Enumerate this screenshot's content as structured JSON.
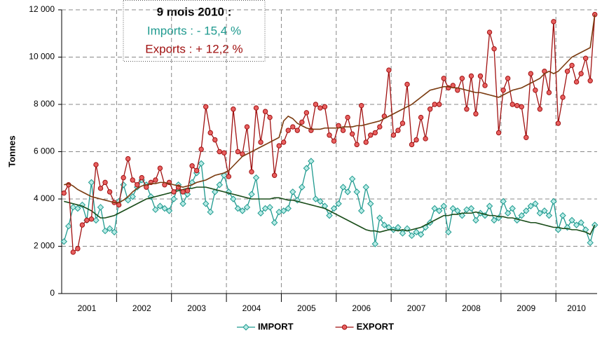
{
  "chart_data": {
    "type": "line",
    "title": "9 mois 2010 :",
    "annotations": [
      "Imports : - 15,4 %",
      "Exports : + 12,2 %"
    ],
    "ylabel": "Tonnes",
    "categories": [
      null,
      null,
      null,
      null,
      null,
      "2001",
      null,
      null,
      null,
      null,
      null,
      null,
      null,
      null,
      null,
      null,
      null,
      "2002",
      null,
      null,
      null,
      null,
      null,
      null,
      null,
      null,
      null,
      null,
      null,
      "2003",
      null,
      null,
      null,
      null,
      null,
      null,
      null,
      null,
      null,
      null,
      null,
      "2004",
      null,
      null,
      null,
      null,
      null,
      null,
      null,
      null,
      null,
      null,
      null,
      "2005",
      null,
      null,
      null,
      null,
      null,
      null,
      null,
      null,
      null,
      null,
      null,
      "2006",
      null,
      null,
      null,
      null,
      null,
      null,
      null,
      null,
      null,
      null,
      null,
      "2007",
      null,
      null,
      null,
      null,
      null,
      null,
      null,
      null,
      null,
      null,
      null,
      "2008",
      null,
      null,
      null,
      null,
      null,
      null,
      null,
      null,
      null,
      null,
      null,
      "2009",
      null,
      null,
      null,
      null,
      null,
      null,
      null,
      null,
      null,
      null,
      "2010",
      null,
      null,
      null,
      null
    ],
    "ylim": [
      0,
      12000
    ],
    "yticks": [
      0,
      {
        "value": 2000,
        "label": "2 000"
      },
      {
        "value": 4000,
        "label": "4 000"
      },
      {
        "value": 6000,
        "label": "6 000"
      },
      {
        "value": 8000,
        "label": "8 000"
      },
      {
        "value": 10000,
        "label": "10 000"
      },
      {
        "value": 12000,
        "label": "12 000"
      }
    ],
    "grid": true,
    "xgrid_every": 12,
    "legend": "bottom",
    "series": [
      {
        "name": "IMPORT",
        "color": "#1f9a8f",
        "marker": "diamond",
        "values": [
          2200,
          2850,
          3650,
          3600,
          3750,
          3100,
          4700,
          3100,
          3650,
          2650,
          2750,
          2600,
          3900,
          4600,
          3950,
          4100,
          4500,
          4800,
          4600,
          4100,
          3550,
          3700,
          3600,
          3500,
          4000,
          4600,
          3800,
          4200,
          4700,
          5100,
          5500,
          3800,
          3450,
          4300,
          4600,
          5000,
          4300,
          4000,
          3600,
          3500,
          3650,
          4200,
          4900,
          3400,
          3600,
          3650,
          3000,
          3450,
          3500,
          3600,
          4300,
          3950,
          4500,
          5300,
          5600,
          4000,
          3900,
          3700,
          3300,
          3600,
          3800,
          4500,
          4300,
          4850,
          4300,
          3500,
          4500,
          3800,
          2100,
          3200,
          2900,
          2800,
          2700,
          2800,
          2550,
          2750,
          2450,
          2600,
          2500,
          2800,
          3000,
          3600,
          3500,
          3700,
          2600,
          3600,
          3500,
          3300,
          3550,
          3600,
          3100,
          3400,
          3300,
          3700,
          3100,
          3200,
          3900,
          3400,
          3600,
          3100,
          3300,
          3500,
          3700,
          3800,
          3400,
          3500,
          3300,
          3900,
          2700,
          3300,
          2800,
          3100,
          2900,
          3000,
          2700,
          2150,
          2900
        ]
      },
      {
        "name": "EXPORT",
        "color": "#a01010",
        "marker": "circle",
        "values": [
          4250,
          4600,
          1750,
          1900,
          2900,
          3100,
          3150,
          5450,
          4450,
          4700,
          4300,
          3850,
          3750,
          4900,
          5700,
          4800,
          4600,
          4900,
          4500,
          4700,
          4800,
          5300,
          4600,
          4700,
          4300,
          4500,
          4300,
          4350,
          5400,
          5200,
          6100,
          7900,
          6800,
          6500,
          6000,
          5950,
          4950,
          7800,
          6000,
          5900,
          7050,
          5150,
          7850,
          6400,
          7700,
          7450,
          5000,
          6250,
          6400,
          6900,
          7050,
          6900,
          7250,
          7650,
          6900,
          8000,
          7850,
          7900,
          6700,
          6450,
          7100,
          6900,
          7450,
          6750,
          6300,
          7950,
          6400,
          6700,
          6800,
          7050,
          7500,
          9450,
          6700,
          6900,
          7200,
          8850,
          6300,
          6500,
          7450,
          6550,
          7800,
          8000,
          8000,
          9100,
          8700,
          8800,
          8600,
          9100,
          7800,
          9200,
          7600,
          9200,
          8800,
          11050,
          10350,
          6800,
          8600,
          9100,
          8000,
          7950,
          7900,
          6600,
          9300,
          8600,
          7800,
          9400,
          8500,
          11500,
          7200,
          8300,
          9400,
          9650,
          8950,
          9300,
          9950,
          9000,
          11800
        ]
      },
      {
        "color": "#1a4d1a",
        "values": [
          3900,
          3850,
          3800,
          3750,
          3700,
          3600,
          3500,
          3350,
          3200,
          3200,
          3250,
          3300,
          3400,
          3500,
          3600,
          3700,
          3800,
          3900,
          4000,
          4050,
          4100,
          4150,
          4200,
          4250,
          4300,
          4350,
          4400,
          4450,
          4450,
          4500,
          4500,
          4500,
          4450,
          4400,
          4350,
          4300,
          4250,
          4200,
          4150,
          4100,
          4050,
          4000,
          4000,
          4000,
          4000,
          4000,
          4050,
          4050,
          4000,
          3950,
          3950,
          3900,
          3850,
          3800,
          3750,
          3700,
          3650,
          3600,
          3500,
          3400,
          3300,
          3200,
          3100,
          3000,
          2900,
          2800,
          2700,
          2650,
          2650,
          2600,
          2650,
          2700,
          2700,
          2650,
          2700,
          2650,
          2700,
          2750,
          2800,
          2900,
          3000,
          3100,
          3200,
          3300,
          3300,
          3350,
          3350,
          3400,
          3400,
          3400,
          3450,
          3400,
          3350,
          3300,
          3300,
          3250,
          3250,
          3200,
          3200,
          3150,
          3100,
          3050,
          3000,
          3000,
          2950,
          2900,
          2850,
          2800,
          2800,
          2750,
          2750,
          2700,
          2700,
          2650,
          2600,
          2500,
          2900
        ]
      },
      {
        "color": "#7a3b10",
        "values": [
          4600,
          4650,
          4550,
          4400,
          4300,
          4200,
          4100,
          4050,
          4000,
          3950,
          3900,
          3850,
          3850,
          3950,
          4100,
          4300,
          4450,
          4550,
          4600,
          4650,
          4650,
          4700,
          4700,
          4650,
          4600,
          4550,
          4500,
          4550,
          4600,
          4700,
          4750,
          4800,
          4900,
          5000,
          5050,
          5100,
          5200,
          5400,
          5600,
          5800,
          5900,
          6000,
          6100,
          6200,
          6300,
          6400,
          6500,
          6600,
          7300,
          7500,
          7400,
          7200,
          7100,
          7000,
          6950,
          6950,
          6950,
          7000,
          7000,
          7000,
          7000,
          7050,
          7050,
          7050,
          7100,
          7100,
          7150,
          7200,
          7250,
          7300,
          7400,
          7500,
          7600,
          7700,
          7800,
          7900,
          8000,
          8150,
          8300,
          8450,
          8600,
          8650,
          8700,
          8750,
          8750,
          8700,
          8700,
          8650,
          8600,
          8550,
          8500,
          8500,
          8450,
          8400,
          8350,
          8300,
          8400,
          8500,
          8600,
          8650,
          8700,
          8800,
          8900,
          9000,
          9100,
          9300,
          9400,
          9300,
          9400,
          9600,
          9800,
          10000,
          10100,
          10200,
          10300,
          10400,
          11800
        ]
      }
    ]
  }
}
